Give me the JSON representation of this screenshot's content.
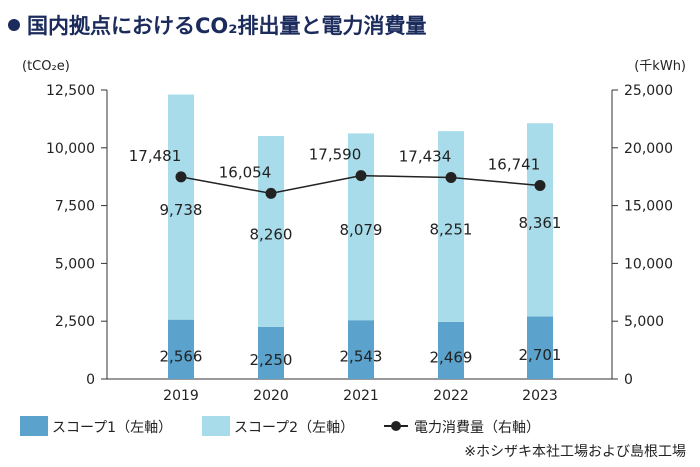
{
  "title": "国内拠点におけるCO₂排出量と電力消費量",
  "colors": {
    "title": "#1b2b5c",
    "scope1": "#5ba2cd",
    "scope2": "#a9dcea",
    "line": "#222222"
  },
  "chart_data": {
    "type": "bar+line",
    "title": "国内拠点におけるCO₂排出量と電力消費量",
    "categories": [
      "2019",
      "2020",
      "2021",
      "2022",
      "2023"
    ],
    "ylabel_left": "(tCO₂e)",
    "ylabel_right": "(千kWh)",
    "ylim_left": [
      0,
      12500
    ],
    "ylim_right": [
      0,
      25000
    ],
    "yticks_left": [
      "0",
      "2,500",
      "5,000",
      "7,500",
      "10,000",
      "12,500"
    ],
    "yticks_right": [
      "0",
      "5,000",
      "10,000",
      "15,000",
      "20,000",
      "25,000"
    ],
    "stacked": true,
    "grid": false,
    "legend_placement": "bottom",
    "series": [
      {
        "name": "スコープ1（左軸）",
        "type": "bar",
        "axis": "left",
        "values": [
          2566,
          2250,
          2543,
          2469,
          2701
        ],
        "labels": [
          "2,566",
          "2,250",
          "2,543",
          "2,469",
          "2,701"
        ]
      },
      {
        "name": "スコープ2（左軸）",
        "type": "bar",
        "axis": "left",
        "values": [
          9738,
          8260,
          8079,
          8251,
          8361
        ],
        "labels": [
          "9,738",
          "8,260",
          "8,079",
          "8,251",
          "8,361"
        ]
      },
      {
        "name": "電力消費量（右軸）",
        "type": "line",
        "axis": "right",
        "values": [
          17481,
          16054,
          17590,
          17434,
          16741
        ],
        "labels": [
          "17,481",
          "16,054",
          "17,590",
          "17,434",
          "16,741"
        ]
      }
    ],
    "footnote": "※ホシザキ本社工場および島根工場"
  }
}
